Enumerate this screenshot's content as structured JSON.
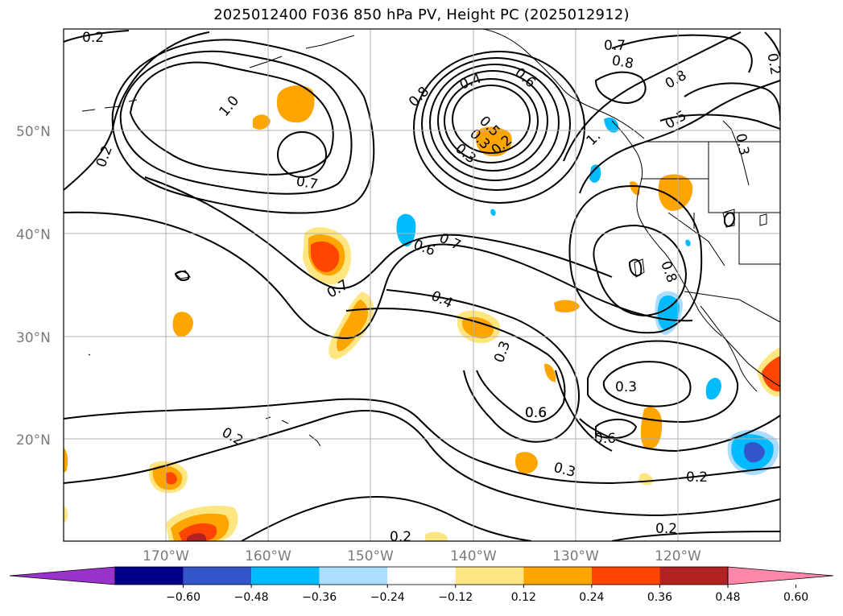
{
  "title": "2025012400 F036 850 hPa PV, Height PC (2025012912)",
  "latitude_labels": [
    "50°N",
    "40°N",
    "30°N",
    "20°N"
  ],
  "longitude_labels": [
    "170°W",
    "160°W",
    "150°W",
    "140°W",
    "130°W",
    "120°W"
  ],
  "colorbar": {
    "ticks": [
      "−0.60",
      "−0.48",
      "−0.36",
      "−0.24",
      "−0.12",
      "0.12",
      "0.24",
      "0.36",
      "0.48",
      "0.60"
    ],
    "colors": [
      "#9933cc",
      "#000088",
      "#3355cc",
      "#00bbff",
      "#aaddff",
      "#ffffff",
      "#ffe680",
      "#ffa500",
      "#ff4500",
      "#b22222",
      "#ff88aa"
    ]
  },
  "contour_labels": [
    "0.2",
    "0.2",
    "1.0",
    "0.8",
    "0.4",
    "0.6",
    "0.7",
    "0.8",
    "0.8",
    "0.5",
    "0.3",
    "0.7",
    "0.3",
    "0.2",
    "1.",
    "0.7",
    "0.6",
    "0.7",
    "0.6",
    "0.4",
    "0.3",
    "0.8",
    "0.3",
    "0.6",
    "0.6",
    "0.3",
    "0.2",
    "0.2",
    "0.2",
    "0.2",
    "0.3",
    "0.5",
    "0.2"
  ],
  "colors": {
    "land_outline": "#000000",
    "grid": "#b0b0b0",
    "contour": "#000000"
  }
}
